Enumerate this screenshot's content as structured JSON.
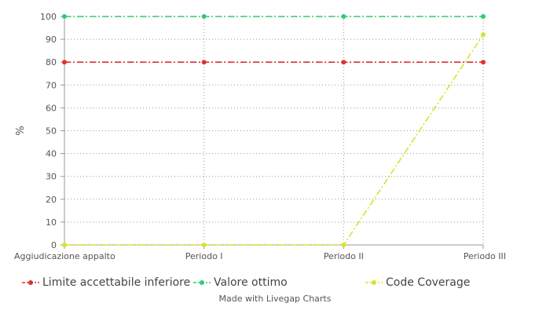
{
  "chart_data": {
    "type": "line",
    "categories": [
      "Aggiudicazione appalto",
      "Periodo I",
      "Periodo II",
      "Periodo III"
    ],
    "ylabel": "%",
    "xlabel": "",
    "ylim": [
      0,
      100
    ],
    "yticks": [
      0,
      10,
      20,
      30,
      40,
      50,
      60,
      70,
      80,
      90,
      100
    ],
    "grid": true,
    "legend_position": "bottom",
    "series": [
      {
        "name": "Limite accettabile inferiore",
        "values": [
          80,
          80,
          80,
          80
        ],
        "color": "#e03131",
        "style": "dash-dot"
      },
      {
        "name": "Valore ottimo",
        "values": [
          100,
          100,
          100,
          100
        ],
        "color": "#2ecc71",
        "style": "dash-dot"
      },
      {
        "name": "Code Coverage",
        "values": [
          0,
          0,
          0,
          92
        ],
        "color": "#d7e22e",
        "style": "dash-dot"
      }
    ]
  },
  "credit": "Made with Livegap Charts"
}
